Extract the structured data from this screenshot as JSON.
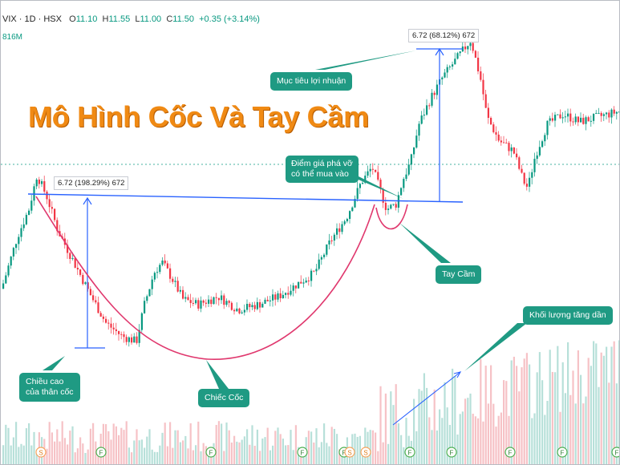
{
  "header": {
    "symbol": "VIX · 1D · HSX",
    "open_label": "O",
    "open": "11.10",
    "high_label": "H",
    "high": "11.55",
    "low_label": "L",
    "low": "11.00",
    "close_label": "C",
    "close": "11.50",
    "change": "+0.35 (+3.14%)",
    "volume_fragment": "816M"
  },
  "annotations": {
    "title": "Mô Hình Cốc Và Tay Cầm",
    "profit_target": "Mục tiêu lợi nhuận",
    "breakout_point": "Điểm giá phá vỡ\ncó thể mua vào",
    "handle": "Tay Cầm",
    "cup_height": "Chiều cao\ncủa thân cốc",
    "cup": "Chiếc Cốc",
    "volume_increase": "Khối lượng tăng dần",
    "measure_left": "6.72 (198.29%) 672",
    "measure_right": "6.72 (68.12%) 672"
  },
  "event_markers": [
    "S",
    "F",
    "F",
    "F",
    "F",
    "S",
    "S",
    "F",
    "F",
    "F",
    "F",
    "F"
  ],
  "colors": {
    "up": "#089981",
    "down": "#f23645",
    "vol_up": "#b7e0d9",
    "vol_down": "#f6c2c6",
    "trend_line": "#2962ff",
    "cup_curve": "#e0386e",
    "callout": "#1f9a83",
    "title": "#f08a14"
  },
  "chart_data": {
    "type": "candlestick",
    "symbol": "VIX",
    "interval": "1D",
    "exchange": "HSX",
    "last_bar": {
      "open": 11.1,
      "high": 11.55,
      "low": 11.0,
      "close": 11.5,
      "change": 0.35,
      "change_pct": 3.14
    },
    "price_path": [
      [
        0,
        0.2
      ],
      [
        20,
        0.4
      ],
      [
        34,
        0.5
      ],
      [
        44,
        0.63
      ],
      [
        56,
        0.55
      ],
      [
        70,
        0.42
      ],
      [
        90,
        0.3
      ],
      [
        110,
        0.18
      ],
      [
        130,
        0.07
      ],
      [
        150,
        0.02
      ],
      [
        168,
        0.0
      ],
      [
        178,
        0.14
      ],
      [
        190,
        0.26
      ],
      [
        200,
        0.3
      ],
      [
        212,
        0.24
      ],
      [
        226,
        0.16
      ],
      [
        245,
        0.14
      ],
      [
        270,
        0.17
      ],
      [
        295,
        0.12
      ],
      [
        320,
        0.14
      ],
      [
        345,
        0.17
      ],
      [
        370,
        0.22
      ],
      [
        390,
        0.26
      ],
      [
        410,
        0.38
      ],
      [
        430,
        0.47
      ],
      [
        448,
        0.6
      ],
      [
        462,
        0.66
      ],
      [
        472,
        0.57
      ],
      [
        480,
        0.5
      ],
      [
        492,
        0.52
      ],
      [
        500,
        0.61
      ],
      [
        510,
        0.68
      ],
      [
        520,
        0.82
      ],
      [
        535,
        0.92
      ],
      [
        550,
        1.0
      ],
      [
        570,
        1.08
      ],
      [
        585,
        1.14
      ],
      [
        598,
        0.98
      ],
      [
        605,
        0.85
      ],
      [
        620,
        0.76
      ],
      [
        638,
        0.72
      ],
      [
        650,
        0.61
      ],
      [
        656,
        0.58
      ],
      [
        665,
        0.7
      ],
      [
        680,
        0.82
      ],
      [
        700,
        0.86
      ],
      [
        720,
        0.83
      ],
      [
        745,
        0.85
      ],
      [
        770,
        0.87
      ]
    ],
    "measures": [
      {
        "label": "6.72 (198.29%) 672",
        "value": 6.72,
        "pct": 198.29,
        "bars": 672
      },
      {
        "label": "6.72 (68.12%) 672",
        "value": 6.72,
        "pct": 68.12,
        "bars": 672
      }
    ]
  }
}
